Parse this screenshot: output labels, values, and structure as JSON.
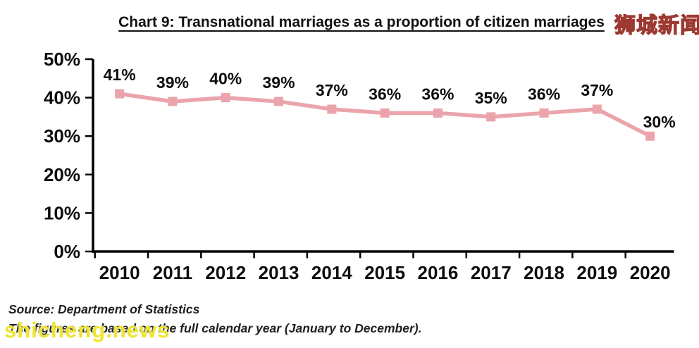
{
  "header": {
    "title": "Chart 9: Transnational marriages as a proportion of citizen marriages"
  },
  "watermarks": {
    "top_right_text": "狮城新闻",
    "top_right_color": "#f8ef00",
    "bottom_left_text": "shicheng.news",
    "bottom_left_color": "#ede433"
  },
  "footer": {
    "source_line": "Source: Department of Statistics",
    "note_line": "The figures are based on the full calendar year (January to December)."
  },
  "chart_data": {
    "type": "line",
    "title": "Chart 9: Transnational marriages as a proportion of citizen marriages",
    "categories": [
      "2010",
      "2011",
      "2012",
      "2013",
      "2014",
      "2015",
      "2016",
      "2017",
      "2018",
      "2019",
      "2020"
    ],
    "values": [
      41,
      39,
      40,
      39,
      37,
      36,
      36,
      35,
      36,
      37,
      30
    ],
    "data_labels": [
      "41%",
      "39%",
      "40%",
      "39%",
      "37%",
      "36%",
      "36%",
      "35%",
      "36%",
      "37%",
      "30%"
    ],
    "unit": "%",
    "ylim": [
      0,
      50
    ],
    "ytick_step": 10,
    "ytick_labels": [
      "0%",
      "10%",
      "20%",
      "30%",
      "40%",
      "50%"
    ],
    "grid": false,
    "legend": "none",
    "line_color": "#eba4ab",
    "marker": "square",
    "axis_color": "#000000",
    "label_color": "#0d0d0d"
  }
}
